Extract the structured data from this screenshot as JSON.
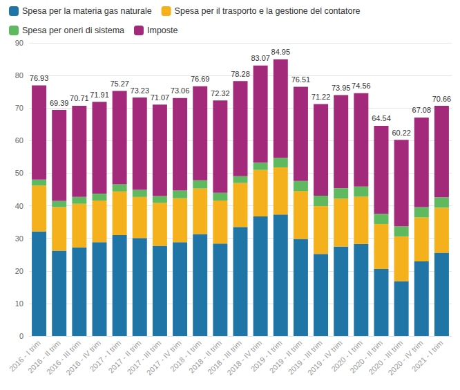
{
  "chart_data": {
    "type": "bar",
    "stacked": true,
    "grid": true,
    "legend": "top-left",
    "data_labels": true,
    "categories": [
      "2016 - I trim",
      "2016 - II trim",
      "2016 - III trim",
      "2016 - IV trim",
      "2017 - I trim",
      "2017 - II trim",
      "2017 - III trim",
      "2017 - IV trim",
      "2018 - I trim",
      "2018 - II trim",
      "2018 - III trim",
      "2018 - IV trim",
      "2019 - I trim",
      "2019 - II trim",
      "2019 - III trim",
      "2019 - IV trim",
      "2020 - I trim",
      "2020 - II trim",
      "2020 - III trim",
      "2020 - IV trim",
      "2021 - I trim"
    ],
    "series": [
      {
        "name": "Spesa per la materia gas naturale",
        "color": "#1f76a6",
        "values": [
          32.1,
          26.2,
          27.2,
          28.8,
          31.0,
          30.1,
          27.7,
          28.8,
          31.3,
          28.4,
          33.5,
          36.7,
          37.3,
          29.8,
          25.2,
          27.5,
          28.3,
          20.6,
          16.8,
          22.9,
          25.6
        ]
      },
      {
        "name": "Spesa per il trasporto e la gestione del contatore",
        "color": "#f5b11c",
        "values": [
          14.1,
          13.4,
          13.4,
          12.8,
          13.4,
          12.6,
          13.2,
          13.5,
          14.0,
          13.2,
          13.5,
          14.3,
          14.5,
          14.7,
          14.7,
          14.7,
          14.5,
          13.8,
          13.8,
          13.5,
          13.8
        ]
      },
      {
        "name": "Spesa per oneri di sistema",
        "color": "#5fb95e",
        "values": [
          1.8,
          1.9,
          2.1,
          2.1,
          2.2,
          2.2,
          2.1,
          2.4,
          2.5,
          2.4,
          2.1,
          2.2,
          2.9,
          3.1,
          3.2,
          3.2,
          3.1,
          3.1,
          3.1,
          3.2,
          3.2
        ]
      },
      {
        "name": "Imposte",
        "color": "#a32a7a",
        "values": [
          28.93,
          27.89,
          28.01,
          28.21,
          28.67,
          28.33,
          28.07,
          28.36,
          28.89,
          28.32,
          29.18,
          29.87,
          30.25,
          28.91,
          28.12,
          28.55,
          28.66,
          27.04,
          26.52,
          27.48,
          28.06
        ]
      }
    ],
    "totals": [
      76.93,
      69.39,
      70.71,
      71.91,
      75.27,
      73.23,
      71.07,
      73.06,
      76.69,
      72.32,
      78.28,
      83.07,
      84.95,
      76.51,
      71.22,
      73.95,
      74.56,
      64.54,
      60.22,
      67.08,
      70.66
    ],
    "ylim": [
      0,
      90
    ],
    "yticks": [
      0,
      10,
      20,
      30,
      40,
      50,
      60,
      70,
      80,
      90
    ]
  }
}
